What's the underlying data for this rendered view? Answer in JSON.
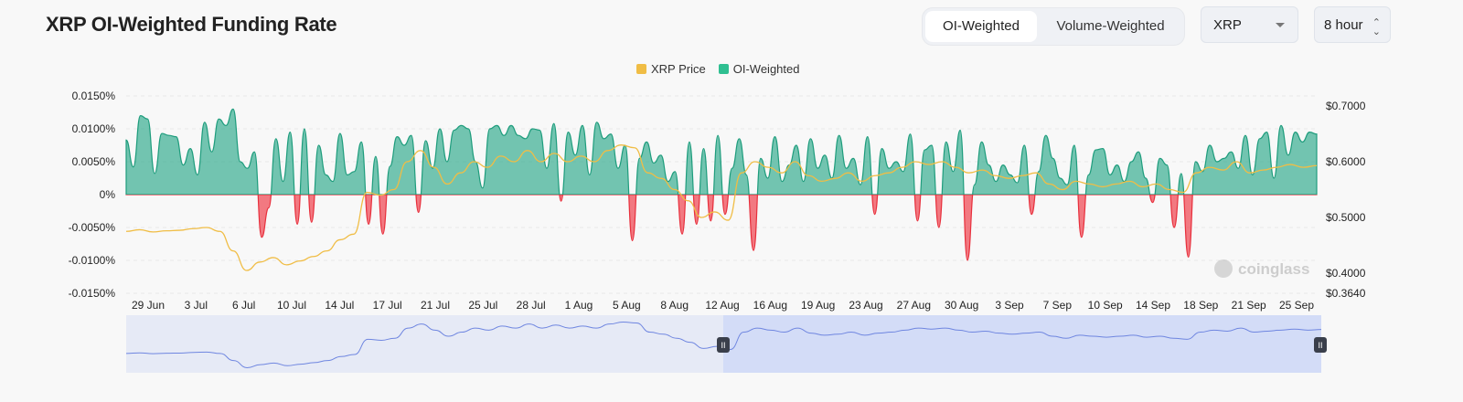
{
  "header": {
    "title": "XRP OI-Weighted Funding Rate",
    "tabs": [
      "OI-Weighted",
      "Volume-Weighted"
    ],
    "active_tab": "OI-Weighted",
    "symbol": "XRP",
    "interval": "8 hour"
  },
  "watermark": "coinglass",
  "colors": {
    "positive": "#2aa888",
    "negative": "#f0434f",
    "price": "#f0bd45",
    "navigator": "#6f86e0"
  },
  "chart_data": {
    "type": "area",
    "title": "XRP OI-Weighted Funding Rate",
    "legend": [
      "XRP Price",
      "OI-Weighted"
    ],
    "legend_placement": "top-center",
    "y_left_ticks": [
      "0.0150%",
      "0.0100%",
      "0.0050%",
      "0%",
      "-0.0050%",
      "-0.0100%",
      "-0.0150%"
    ],
    "y_left_range": [
      -0.015,
      0.015
    ],
    "y_right_ticks": [
      "$0.7000",
      "$0.6000",
      "$0.5000",
      "$0.4000",
      "$0.3640"
    ],
    "y_right_range": [
      0.364,
      0.718
    ],
    "x_ticks": [
      "29 Jun",
      "3 Jul",
      "6 Jul",
      "10 Jul",
      "14 Jul",
      "17 Jul",
      "21 Jul",
      "25 Jul",
      "28 Jul",
      "1 Aug",
      "5 Aug",
      "8 Aug",
      "12 Aug",
      "16 Aug",
      "19 Aug",
      "23 Aug",
      "27 Aug",
      "30 Aug",
      "3 Sep",
      "7 Sep",
      "10 Sep",
      "14 Sep",
      "18 Sep",
      "21 Sep",
      "25 Sep"
    ],
    "oi_weighted_funding_pct": [
      0.0083,
      0.0042,
      0.012,
      0.0115,
      0.0032,
      0.0093,
      0.009,
      0.0088,
      0.0045,
      0.007,
      0.003,
      0.011,
      0.0065,
      0.0115,
      0.0105,
      0.013,
      0.005,
      0.004,
      0.0065,
      -0.0065,
      -0.002,
      0.0085,
      0.002,
      0.0095,
      -0.0045,
      0.01,
      -0.0042,
      0.0075,
      0.003,
      0.002,
      0.0093,
      0.003,
      0.0035,
      0.008,
      -0.0045,
      0.0058,
      -0.006,
      0.0043,
      0.0088,
      0.0075,
      0.009,
      -0.0027,
      0.0082,
      0.004,
      0.01,
      0.005,
      0.0098,
      0.0105,
      0.01,
      0.005,
      0.001,
      0.01,
      0.0105,
      0.009,
      0.0105,
      0.009,
      0.0085,
      0.01,
      0.0098,
      0.004,
      0.0108,
      -0.001,
      0.0095,
      0.006,
      0.0105,
      0.003,
      0.011,
      0.0085,
      0.0092,
      0.004,
      0.0075,
      -0.007,
      0.0055,
      0.008,
      0.0048,
      0.006,
      0.002,
      0.0035,
      -0.006,
      0.008,
      -0.0045,
      0.007,
      -0.004,
      0.009,
      -0.003,
      0.004,
      0.0085,
      0.003,
      -0.0085,
      0.0055,
      0.0025,
      0.0088,
      0.002,
      0.0045,
      0.0075,
      0.002,
      0.0085,
      0.004,
      0.006,
      0.0025,
      0.009,
      0.004,
      0.0055,
      0.0015,
      0.0088,
      -0.003,
      0.007,
      0.004,
      0.005,
      0.0035,
      0.0092,
      -0.004,
      0.0068,
      0.0075,
      -0.005,
      0.008,
      0.0035,
      0.0098,
      -0.01,
      0.0015,
      0.008,
      0.0045,
      0.002,
      0.0045,
      0.003,
      0.0018,
      0.0075,
      -0.003,
      0.0035,
      0.009,
      0.0055,
      0.0025,
      0.0015,
      0.0075,
      -0.0065,
      0.003,
      0.0068,
      0.007,
      0.003,
      0.0045,
      0.002,
      0.005,
      0.0065,
      0.0025,
      -0.0012,
      0.0055,
      0.0045,
      -0.005,
      0.0032,
      -0.0095,
      0.005,
      0.0035,
      0.0075,
      0.005,
      0.0055,
      0.0065,
      0.004,
      0.009,
      0.003,
      0.0085,
      0.0095,
      0.0025,
      0.0105,
      0.006,
      0.0095,
      0.008,
      0.0095,
      0.0092
    ],
    "xrp_price_usd": [
      0.475,
      0.478,
      0.474,
      0.476,
      0.477,
      0.48,
      0.482,
      0.475,
      0.44,
      0.405,
      0.42,
      0.428,
      0.415,
      0.422,
      0.43,
      0.44,
      0.46,
      0.47,
      0.545,
      0.54,
      0.55,
      0.6,
      0.62,
      0.59,
      0.56,
      0.58,
      0.6,
      0.59,
      0.61,
      0.6,
      0.62,
      0.6,
      0.615,
      0.6,
      0.61,
      0.6,
      0.62,
      0.63,
      0.625,
      0.58,
      0.57,
      0.55,
      0.53,
      0.5,
      0.51,
      0.495,
      0.58,
      0.6,
      0.59,
      0.58,
      0.6,
      0.575,
      0.565,
      0.57,
      0.58,
      0.565,
      0.575,
      0.58,
      0.59,
      0.6,
      0.595,
      0.6,
      0.59,
      0.58,
      0.585,
      0.575,
      0.57,
      0.575,
      0.58,
      0.56,
      0.55,
      0.565,
      0.56,
      0.555,
      0.56,
      0.565,
      0.555,
      0.56,
      0.55,
      0.545,
      0.58,
      0.59,
      0.585,
      0.6,
      0.58,
      0.585,
      0.59,
      0.595,
      0.59,
      0.593
    ]
  }
}
